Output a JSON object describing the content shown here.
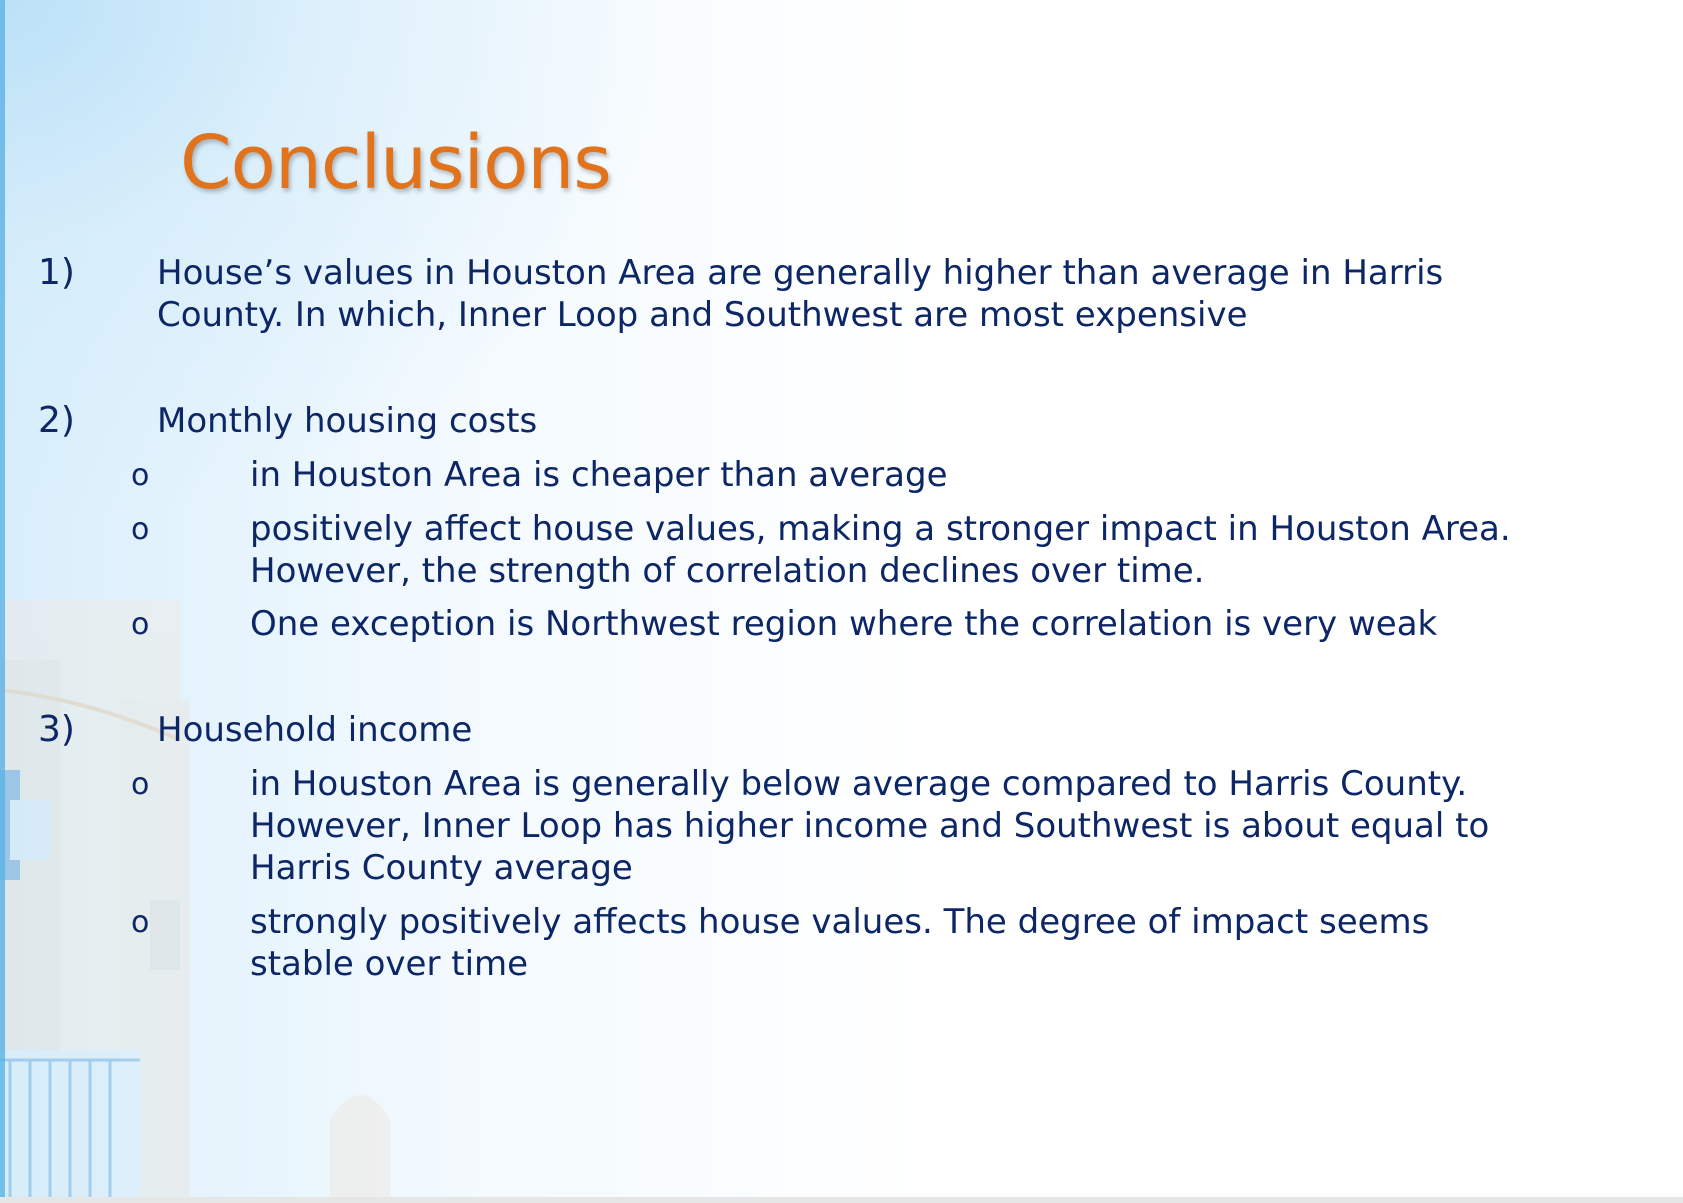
{
  "slide": {
    "title": "Conclusions",
    "points": [
      {
        "number": "1)",
        "lines": [
          "House’s values in Houston Area are generally higher than average in Harris",
          "County. In which, Inner Loop and Southwest are most expensive"
        ]
      },
      {
        "number": "2)",
        "heading": "Monthly housing costs",
        "subpoints": [
          {
            "bullet": "o",
            "lines": [
              "in Houston Area is cheaper than average"
            ]
          },
          {
            "bullet": "o",
            "lines": [
              "positively affect house values, making a stronger impact in Houston Area.",
              "However, the strength of correlation declines over time."
            ]
          },
          {
            "bullet": "o",
            "lines": [
              "One exception is Northwest region where the correlation is very weak"
            ]
          }
        ]
      },
      {
        "number": "3)",
        "heading": "Household income",
        "subpoints": [
          {
            "bullet": "o",
            "lines": [
              "in Houston Area is generally below average compared to Harris County.",
              "However, Inner Loop has higher income and Southwest is about equal to",
              "Harris County average"
            ]
          },
          {
            "bullet": "o",
            "lines": [
              "strongly positively affects house values. The degree of impact seems",
              "stable over time"
            ]
          }
        ]
      }
    ]
  },
  "colors": {
    "title": "#e1731d",
    "body_text": "#0c2666",
    "background_tint": "#d8eefb"
  }
}
